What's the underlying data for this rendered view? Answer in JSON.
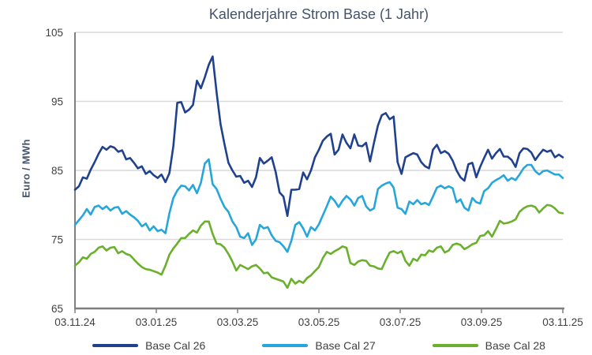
{
  "chart_data": {
    "type": "line",
    "title": "Kalenderjahre Strom Base (1 Jahr)",
    "ylabel": "Euro / MWh",
    "ylim": [
      65,
      105
    ],
    "yticks": [
      105,
      95,
      85,
      75,
      65
    ],
    "ytick_labels": [
      "105",
      "95",
      "85",
      "75",
      "65"
    ],
    "xtick_labels": [
      "03.11.24",
      "03.01.25",
      "03.03.25",
      "03.05.25",
      "03.07.25",
      "03.09.25",
      "03.11.25"
    ],
    "grid": "horizontal",
    "legend_position": "bottom",
    "axis_color": "#7F7F7F",
    "grid_color": "#D9D9D9",
    "tick_text_color": "#404040",
    "title_color": "#44546A",
    "series": [
      {
        "name": "Base Cal 26",
        "color": "#20418D",
        "values": [
          82.2,
          82.7,
          84.0,
          83.8,
          85.1,
          86.2,
          87.4,
          88.4,
          88.0,
          88.5,
          88.3,
          87.7,
          87.9,
          86.6,
          86.8,
          86.1,
          85.3,
          85.6,
          84.5,
          84.9,
          84.3,
          83.9,
          84.4,
          83.3,
          84.6,
          88.5,
          94.8,
          94.9,
          93.4,
          93.8,
          94.5,
          98.0,
          96.9,
          98.5,
          100.3,
          101.5,
          96.3,
          91.7,
          88.8,
          86.1,
          85.0,
          84.1,
          84.2,
          83.2,
          83.5,
          82.6,
          84.0,
          86.8,
          86.0,
          86.4,
          86.9,
          84.8,
          81.8,
          81.2,
          78.4,
          82.2,
          82.2,
          82.3,
          84.7,
          83.7,
          85.0,
          86.9,
          88.0,
          89.3,
          89.9,
          90.3,
          87.3,
          88.0,
          90.2,
          89.0,
          88.2,
          90.2,
          88.6,
          88.5,
          89.0,
          86.3,
          89.0,
          91.5,
          93.0,
          93.3,
          92.4,
          92.8,
          86.2,
          84.5,
          86.9,
          87.2,
          87.5,
          87.3,
          86.2,
          85.6,
          85.3,
          88.0,
          88.7,
          87.5,
          87.8,
          87.4,
          86.4,
          85.0,
          84.0,
          83.5,
          85.9,
          86.1,
          84.0,
          85.5,
          86.8,
          88.0,
          86.7,
          87.5,
          88.1,
          87.0,
          87.0,
          86.5,
          85.5,
          87.5,
          88.2,
          88.1,
          87.6,
          86.5,
          87.3,
          88.0,
          87.7,
          87.9,
          86.9,
          87.3,
          86.9
        ]
      },
      {
        "name": "Base Cal 27",
        "color": "#27A6DC",
        "values": [
          77.1,
          77.8,
          78.5,
          79.4,
          78.6,
          79.7,
          79.9,
          79.4,
          79.8,
          79.2,
          79.6,
          79.7,
          78.7,
          79.1,
          78.6,
          78.2,
          77.7,
          76.9,
          77.3,
          76.3,
          76.9,
          76.2,
          76.4,
          75.9,
          78.8,
          81.0,
          82.1,
          82.8,
          82.7,
          82.1,
          82.9,
          81.7,
          83.2,
          86.0,
          86.6,
          83.0,
          82.3,
          80.9,
          79.7,
          79.0,
          77.6,
          76.8,
          75.4,
          75.2,
          75.9,
          74.2,
          75.0,
          77.1,
          76.6,
          76.8,
          75.6,
          74.8,
          74.6,
          74.0,
          73.2,
          74.8,
          77.1,
          77.5,
          76.6,
          75.4,
          76.8,
          76.3,
          77.2,
          78.5,
          79.8,
          81.2,
          80.6,
          79.7,
          80.6,
          81.3,
          80.8,
          79.9,
          81.0,
          81.3,
          79.8,
          79.2,
          79.5,
          82.3,
          82.8,
          83.1,
          83.3,
          82.5,
          79.6,
          79.4,
          78.7,
          80.5,
          80.1,
          80.7,
          80.1,
          80.3,
          80.0,
          81.2,
          82.5,
          82.8,
          82.4,
          82.7,
          82.4,
          80.4,
          80.8,
          79.6,
          79.2,
          81.0,
          80.4,
          80.2,
          82.0,
          82.4,
          83.2,
          83.6,
          83.9,
          84.3,
          83.5,
          83.9,
          83.6,
          84.4,
          85.3,
          85.8,
          85.8,
          84.9,
          84.4,
          84.9,
          85.0,
          84.7,
          84.4,
          84.4,
          83.9
        ]
      },
      {
        "name": "Base Cal 28",
        "color": "#6AB02C",
        "values": [
          71.2,
          71.7,
          72.4,
          72.2,
          72.9,
          73.2,
          73.8,
          74.0,
          73.4,
          73.8,
          73.9,
          73.0,
          73.3,
          72.9,
          72.7,
          72.1,
          71.5,
          71.0,
          70.7,
          70.6,
          70.4,
          70.2,
          69.9,
          71.2,
          72.8,
          73.7,
          74.4,
          75.2,
          75.2,
          75.8,
          76.3,
          76.0,
          77.0,
          77.6,
          77.6,
          75.8,
          74.4,
          74.3,
          73.8,
          72.9,
          71.8,
          70.5,
          71.3,
          71.0,
          70.7,
          71.1,
          71.3,
          70.8,
          70.1,
          70.2,
          69.5,
          69.3,
          69.1,
          68.9,
          68.0,
          69.3,
          68.6,
          69.0,
          68.7,
          69.4,
          69.8,
          70.4,
          71.0,
          72.3,
          73.2,
          72.9,
          73.3,
          73.6,
          74.0,
          73.8,
          71.6,
          71.3,
          71.8,
          72.0,
          71.9,
          71.2,
          71.1,
          70.8,
          70.7,
          72.0,
          73.1,
          73.3,
          73.0,
          73.3,
          71.9,
          71.2,
          72.2,
          71.9,
          72.8,
          72.7,
          73.4,
          73.2,
          73.8,
          74.0,
          73.1,
          73.4,
          74.2,
          74.4,
          74.2,
          73.6,
          73.9,
          74.3,
          74.5,
          75.5,
          75.6,
          76.2,
          75.4,
          76.5,
          77.7,
          77.3,
          77.4,
          77.6,
          77.9,
          79.0,
          79.5,
          79.8,
          79.9,
          79.7,
          78.9,
          79.5,
          80.0,
          79.9,
          79.5,
          78.9,
          78.8
        ]
      }
    ]
  }
}
